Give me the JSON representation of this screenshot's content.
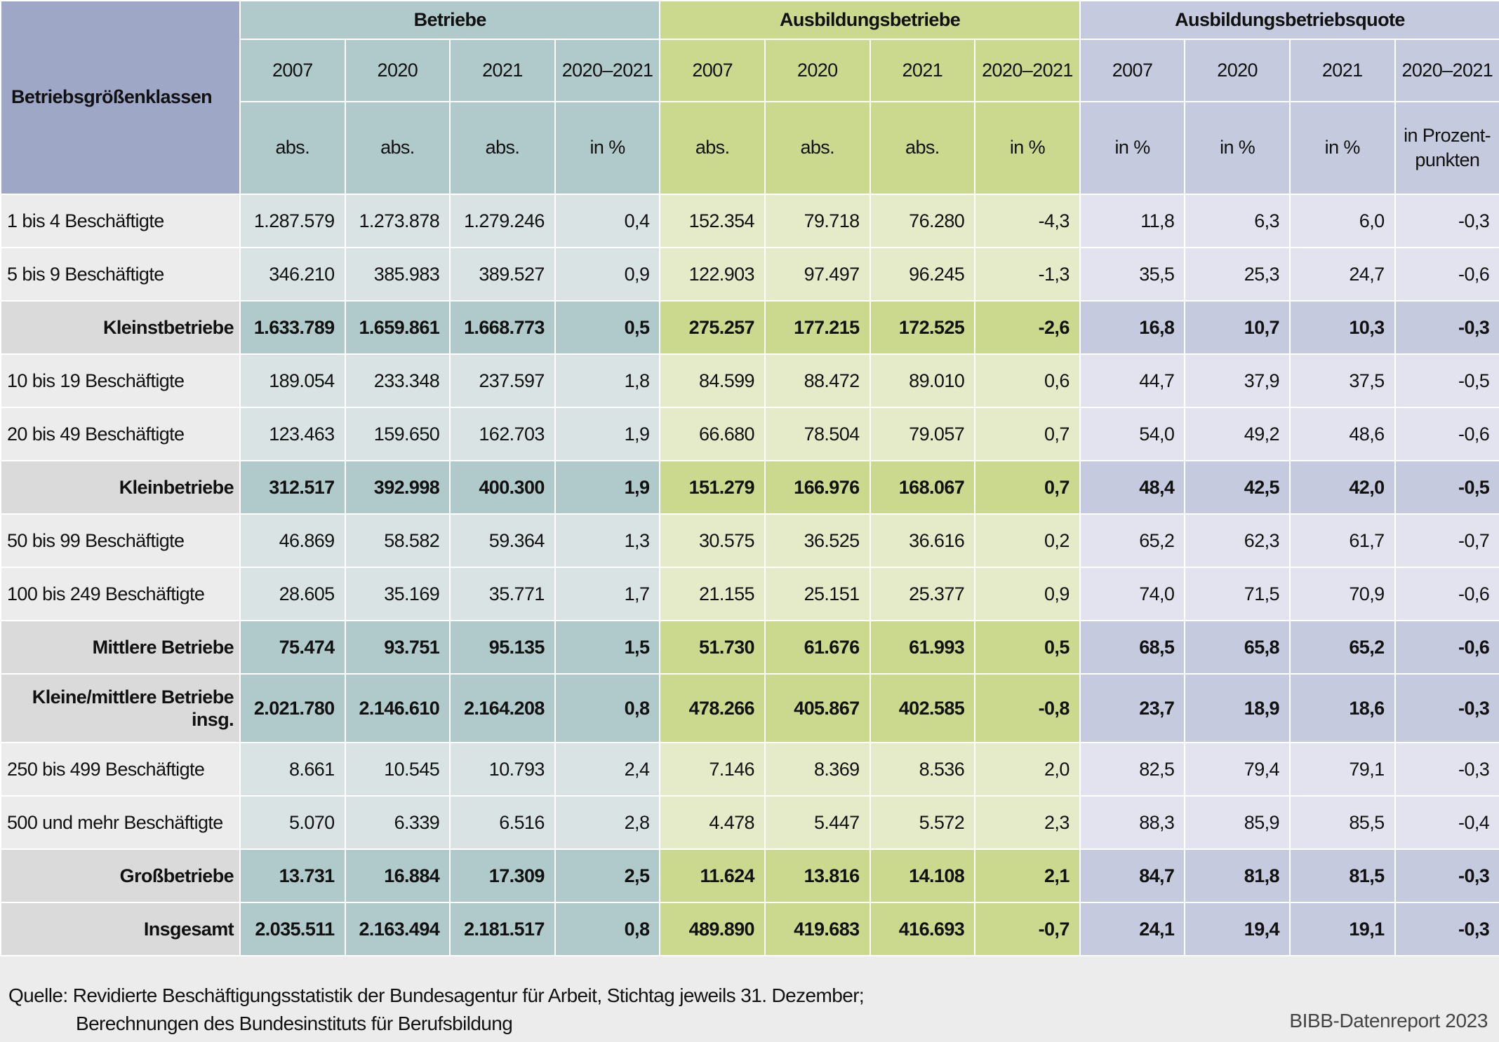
{
  "header": {
    "corner": "Betriebsgrößenklassen",
    "groups": [
      "Betriebe",
      "Ausbildungsbetriebe",
      "Ausbildungsbetriebsquote"
    ],
    "years": [
      "2007",
      "2020",
      "2021",
      "2020–2021"
    ],
    "units": {
      "Betriebe": [
        "abs.",
        "abs.",
        "abs.",
        "in %"
      ],
      "Ausbildungsbetriebe": [
        "abs.",
        "abs.",
        "abs.",
        "in %"
      ],
      "Ausbildungsbetriebsquote": [
        "in %",
        "in %",
        "in %",
        "in Prozent­punkten"
      ]
    }
  },
  "rows": [
    {
      "label": "1 bis 4 Beschäftigte",
      "sum": false,
      "values": [
        "1.287.579",
        "1.273.878",
        "1.279.246",
        "0,4",
        "152.354",
        "79.718",
        "76.280",
        "-4,3",
        "11,8",
        "6,3",
        "6,0",
        "-0,3"
      ]
    },
    {
      "label": "5 bis 9 Beschäftigte",
      "sum": false,
      "values": [
        "346.210",
        "385.983",
        "389.527",
        "0,9",
        "122.903",
        "97.497",
        "96.245",
        "-1,3",
        "35,5",
        "25,3",
        "24,7",
        "-0,6"
      ]
    },
    {
      "label": "Kleinstbetriebe",
      "sum": true,
      "values": [
        "1.633.789",
        "1.659.861",
        "1.668.773",
        "0,5",
        "275.257",
        "177.215",
        "172.525",
        "-2,6",
        "16,8",
        "10,7",
        "10,3",
        "-0,3"
      ]
    },
    {
      "label": "10 bis 19 Beschäftigte",
      "sum": false,
      "values": [
        "189.054",
        "233.348",
        "237.597",
        "1,8",
        "84.599",
        "88.472",
        "89.010",
        "0,6",
        "44,7",
        "37,9",
        "37,5",
        "-0,5"
      ]
    },
    {
      "label": "20 bis 49 Beschäftigte",
      "sum": false,
      "values": [
        "123.463",
        "159.650",
        "162.703",
        "1,9",
        "66.680",
        "78.504",
        "79.057",
        "0,7",
        "54,0",
        "49,2",
        "48,6",
        "-0,6"
      ]
    },
    {
      "label": "Kleinbetriebe",
      "sum": true,
      "values": [
        "312.517",
        "392.998",
        "400.300",
        "1,9",
        "151.279",
        "166.976",
        "168.067",
        "0,7",
        "48,4",
        "42,5",
        "42,0",
        "-0,5"
      ]
    },
    {
      "label": "50 bis 99 Beschäftigte",
      "sum": false,
      "values": [
        "46.869",
        "58.582",
        "59.364",
        "1,3",
        "30.575",
        "36.525",
        "36.616",
        "0,2",
        "65,2",
        "62,3",
        "61,7",
        "-0,7"
      ]
    },
    {
      "label": "100 bis 249 Beschäftigte",
      "sum": false,
      "values": [
        "28.605",
        "35.169",
        "35.771",
        "1,7",
        "21.155",
        "25.151",
        "25.377",
        "0,9",
        "74,0",
        "71,5",
        "70,9",
        "-0,6"
      ]
    },
    {
      "label": "Mittlere Betriebe",
      "sum": true,
      "values": [
        "75.474",
        "93.751",
        "95.135",
        "1,5",
        "51.730",
        "61.676",
        "61.993",
        "0,5",
        "68,5",
        "65,8",
        "65,2",
        "-0,6"
      ]
    },
    {
      "label": "Kleine/mittlere Betriebe insg.",
      "sum": true,
      "tall": true,
      "values": [
        "2.021.780",
        "2.146.610",
        "2.164.208",
        "0,8",
        "478.266",
        "405.867",
        "402.585",
        "-0,8",
        "23,7",
        "18,9",
        "18,6",
        "-0,3"
      ]
    },
    {
      "label": "250 bis 499 Beschäftigte",
      "sum": false,
      "values": [
        "8.661",
        "10.545",
        "10.793",
        "2,4",
        "7.146",
        "8.369",
        "8.536",
        "2,0",
        "82,5",
        "79,4",
        "79,1",
        "-0,3"
      ]
    },
    {
      "label": "500 und mehr Beschäftigte",
      "sum": false,
      "values": [
        "5.070",
        "6.339",
        "6.516",
        "2,8",
        "4.478",
        "5.447",
        "5.572",
        "2,3",
        "88,3",
        "85,9",
        "85,5",
        "-0,4"
      ]
    },
    {
      "label": "Großbetriebe",
      "sum": true,
      "values": [
        "13.731",
        "16.884",
        "17.309",
        "2,5",
        "11.624",
        "13.816",
        "14.108",
        "2,1",
        "84,7",
        "81,8",
        "81,5",
        "-0,3"
      ]
    },
    {
      "label": "Insgesamt",
      "sum": true,
      "values": [
        "2.035.511",
        "2.163.494",
        "2.181.517",
        "0,8",
        "489.890",
        "419.683",
        "416.693",
        "-0,7",
        "24,1",
        "19,4",
        "19,1",
        "-0,3"
      ]
    }
  ],
  "footer": {
    "source_line1": "Quelle: Revidierte Beschäftigungsstatistik der Bundesagentur für Arbeit, Stichtag jeweils 31. Dezember;",
    "source_line2": "Berechnungen des Bundesinstituts für Berufsbildung",
    "brand": "BIBB-Datenreport 2023"
  }
}
